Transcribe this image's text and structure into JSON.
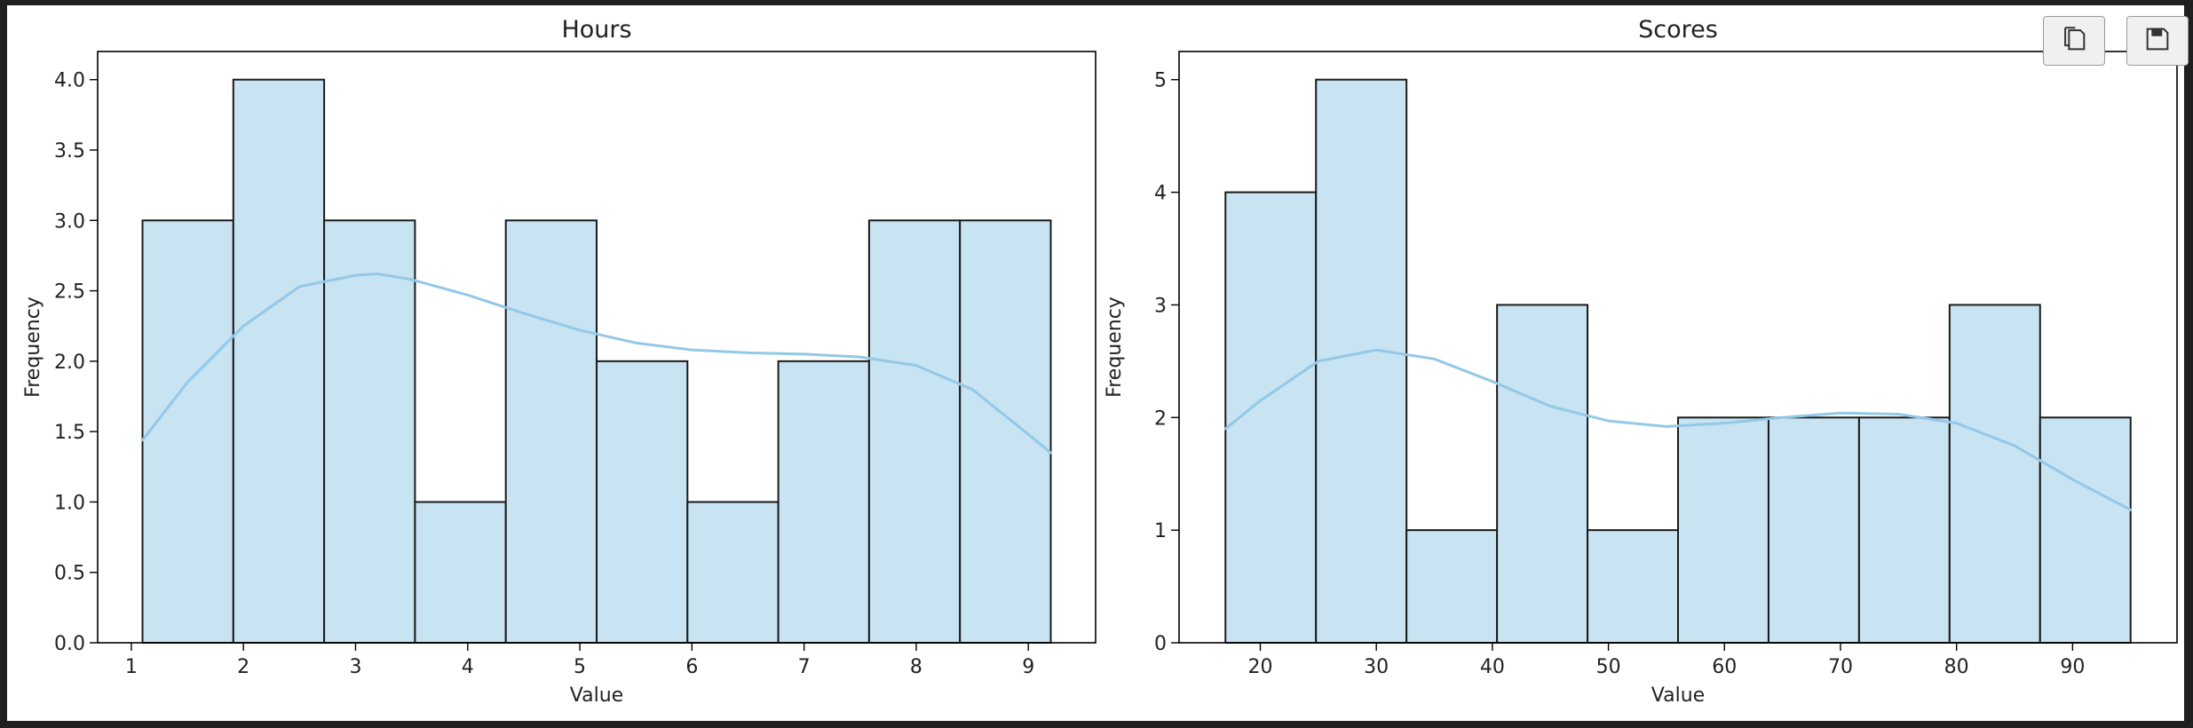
{
  "toolbar": {
    "copy_icon": "copy-icon",
    "save_icon": "save-icon"
  },
  "colors": {
    "bar_fill": "#c8e3f2",
    "bar_edge": "#1a1a1a",
    "kde_line": "#93c8e8",
    "text": "#222222"
  },
  "chart_data": [
    {
      "type": "bar",
      "title": "Hours",
      "xlabel": "Value",
      "ylabel": "Frequency",
      "xlim": [
        0.7,
        9.6
      ],
      "ylim": [
        0,
        4.2
      ],
      "xticks": [
        1,
        2,
        3,
        4,
        5,
        6,
        7,
        8,
        9
      ],
      "xtick_labels": [
        "1",
        "2",
        "3",
        "4",
        "5",
        "6",
        "7",
        "8",
        "9"
      ],
      "yticks": [
        0,
        0.5,
        1.0,
        1.5,
        2.0,
        2.5,
        3.0,
        3.5,
        4.0
      ],
      "ytick_labels": [
        "0.0",
        "0.5",
        "1.0",
        "1.5",
        "2.0",
        "2.5",
        "3.0",
        "3.5",
        "4.0"
      ],
      "bin_edges": [
        1.1,
        1.91,
        2.72,
        3.53,
        4.34,
        5.15,
        5.96,
        6.77,
        7.58,
        8.39,
        9.2
      ],
      "counts": [
        3,
        4,
        3,
        1,
        3,
        2,
        1,
        2,
        3,
        3
      ],
      "kde": {
        "x": [
          1.1,
          1.5,
          2.0,
          2.5,
          3.0,
          3.2,
          3.5,
          4.0,
          4.5,
          5.0,
          5.5,
          6.0,
          6.5,
          7.0,
          7.5,
          8.0,
          8.5,
          9.0,
          9.2
        ],
        "y": [
          1.44,
          1.85,
          2.25,
          2.53,
          2.61,
          2.62,
          2.58,
          2.47,
          2.34,
          2.22,
          2.13,
          2.08,
          2.06,
          2.05,
          2.03,
          1.97,
          1.8,
          1.48,
          1.35
        ]
      }
    },
    {
      "type": "bar",
      "title": "Scores",
      "xlabel": "Value",
      "ylabel": "Frequency",
      "xlim": [
        13.0,
        99.0
      ],
      "ylim": [
        0,
        5.25
      ],
      "xticks": [
        20,
        30,
        40,
        50,
        60,
        70,
        80,
        90
      ],
      "xtick_labels": [
        "20",
        "30",
        "40",
        "50",
        "60",
        "70",
        "80",
        "90"
      ],
      "yticks": [
        0,
        1,
        2,
        3,
        4,
        5
      ],
      "ytick_labels": [
        "0",
        "1",
        "2",
        "3",
        "4",
        "5"
      ],
      "bin_edges": [
        17,
        24.8,
        32.6,
        40.4,
        48.2,
        56.0,
        63.8,
        71.6,
        79.4,
        87.2,
        95
      ],
      "counts": [
        4,
        5,
        1,
        3,
        1,
        2,
        2,
        2,
        3,
        2
      ],
      "kde": {
        "x": [
          17,
          20,
          25,
          30,
          35,
          40,
          45,
          50,
          55,
          60,
          65,
          70,
          75,
          80,
          85,
          90,
          95
        ],
        "y": [
          1.9,
          2.15,
          2.5,
          2.6,
          2.52,
          2.32,
          2.1,
          1.97,
          1.92,
          1.95,
          2.0,
          2.04,
          2.03,
          1.95,
          1.75,
          1.45,
          1.18
        ]
      }
    }
  ]
}
